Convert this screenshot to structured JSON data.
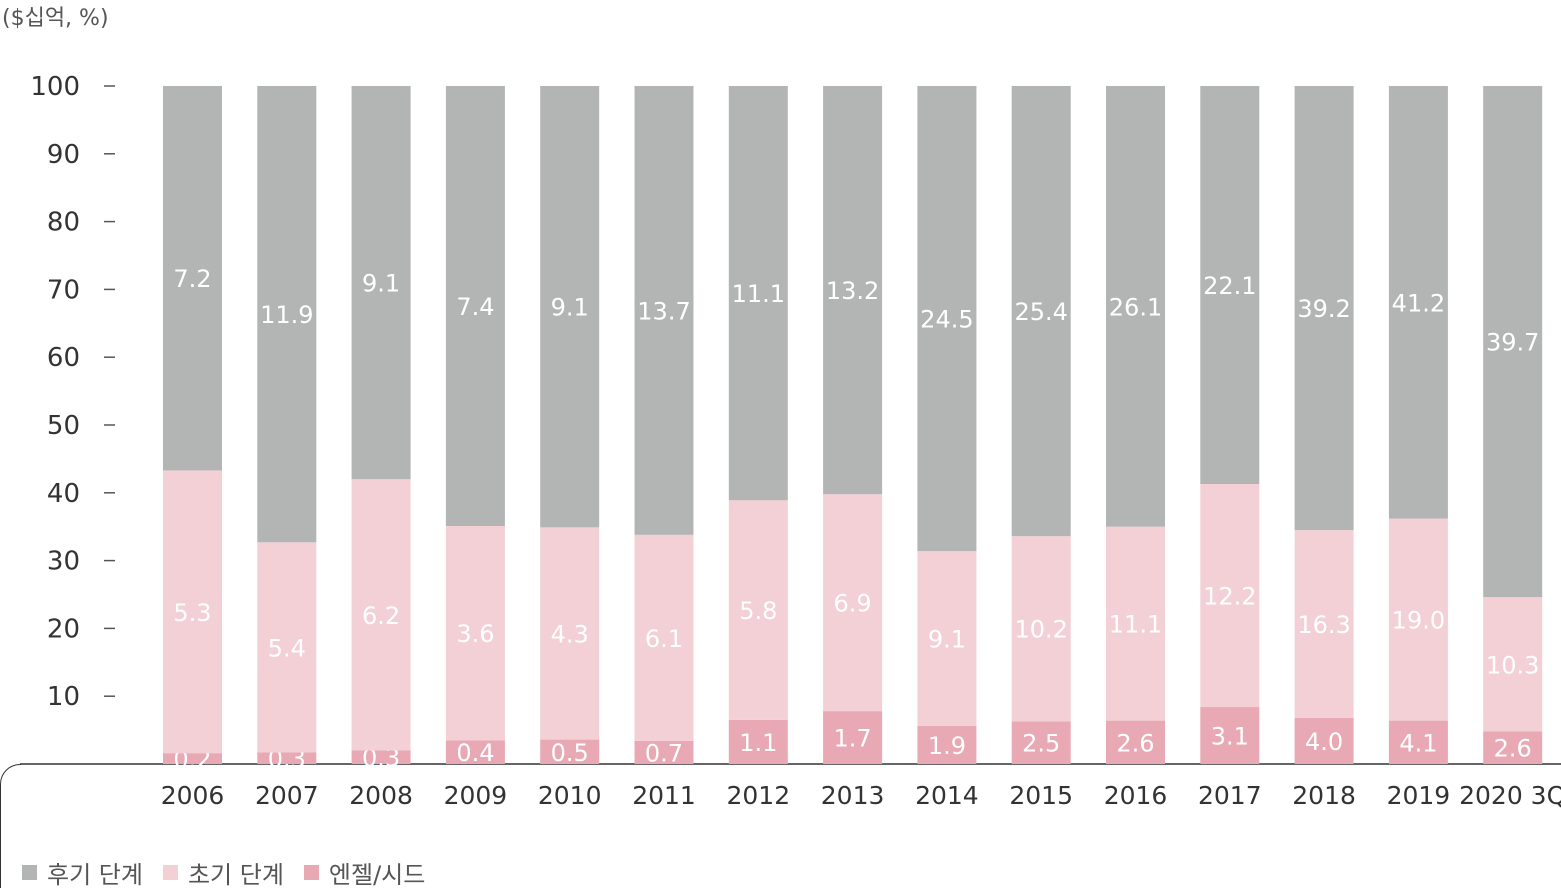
{
  "chart_data": {
    "type": "bar",
    "stacked": true,
    "unit_label": "($십억, %)",
    "ylim": [
      0,
      100
    ],
    "yticks": [
      10,
      20,
      30,
      40,
      50,
      60,
      70,
      80,
      90,
      100
    ],
    "categories": [
      "2006",
      "2007",
      "2008",
      "2009",
      "2010",
      "2011",
      "2012",
      "2013",
      "2014",
      "2015",
      "2016",
      "2017",
      "2018",
      "2019",
      "2020 3Q"
    ],
    "series": [
      {
        "name": "엔젤/시드",
        "color": "#e8a9b4",
        "share_pct": [
          1.6,
          1.7,
          2.0,
          3.5,
          3.6,
          3.4,
          6.5,
          7.8,
          5.6,
          6.3,
          6.4,
          8.4,
          6.8,
          6.4,
          4.8
        ],
        "labels": [
          "0.2",
          "0.3",
          "0.3",
          "0.4",
          "0.5",
          "0.7",
          "1.1",
          "1.7",
          "1.9",
          "2.5",
          "2.6",
          "3.1",
          "4.0",
          "4.1",
          "2.6"
        ]
      },
      {
        "name": "초기 단계",
        "color": "#f3d0d5",
        "share_pct": [
          41.7,
          31.0,
          40.0,
          31.6,
          31.3,
          30.4,
          32.4,
          32.0,
          25.8,
          27.3,
          28.6,
          32.9,
          27.7,
          29.8,
          19.8
        ],
        "labels": [
          "5.3",
          "5.4",
          "6.2",
          "3.6",
          "4.3",
          "6.1",
          "5.8",
          "6.9",
          "9.1",
          "10.2",
          "11.1",
          "12.2",
          "16.3",
          "19.0",
          "10.3"
        ]
      },
      {
        "name": "후기 단계",
        "color": "#b3b4b4",
        "share_pct": [
          56.7,
          67.3,
          58.0,
          64.9,
          65.1,
          66.2,
          61.1,
          60.2,
          68.6,
          66.4,
          65.0,
          58.7,
          65.5,
          63.8,
          75.4
        ],
        "labels": [
          "7.2",
          "11.9",
          "9.1",
          "7.4",
          "9.1",
          "13.7",
          "11.1",
          "13.2",
          "24.5",
          "25.4",
          "26.1",
          "22.1",
          "39.2",
          "41.2",
          "39.7"
        ]
      }
    ],
    "legend_position": "bottom-left",
    "grid": false
  }
}
